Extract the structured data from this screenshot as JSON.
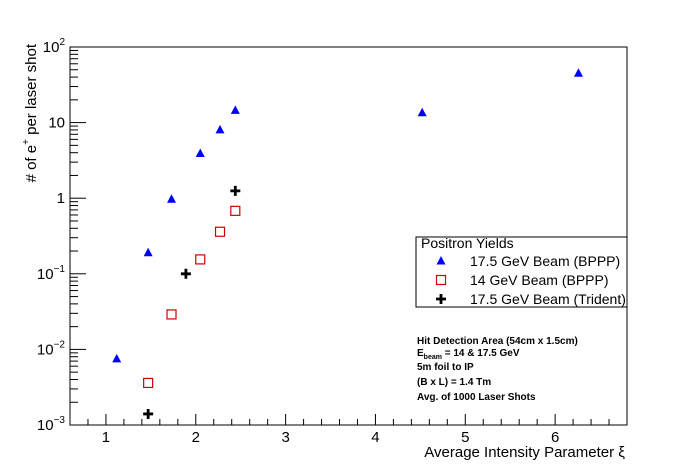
{
  "chart_data": {
    "type": "scatter",
    "title": "",
    "xlabel": "Average Intensity Parameter ξ",
    "ylabel_base": "# of e",
    "ylabel_sup": "+",
    "ylabel_rest": " per laser shot",
    "x_scale": "linear",
    "y_scale": "log",
    "xlim": [
      0.6,
      6.8
    ],
    "ylim": [
      0.001,
      100
    ],
    "x_ticks": [
      1,
      2,
      3,
      4,
      5,
      6
    ],
    "x_tick_labels": [
      "1",
      "2",
      "3",
      "4",
      "5",
      "6"
    ],
    "y_tick_labels": [
      {
        "value": 0.001,
        "base": "10",
        "exp": "−3"
      },
      {
        "value": 0.01,
        "base": "10",
        "exp": "−2"
      },
      {
        "value": 0.1,
        "base": "10",
        "exp": "−1"
      },
      {
        "value": 1,
        "base": "1",
        "exp": ""
      },
      {
        "value": 10,
        "base": "10",
        "exp": ""
      },
      {
        "value": 100,
        "base": "10",
        "exp": "2"
      }
    ],
    "legend_title": "Positron Yields",
    "series": [
      {
        "name": "17.5 GeV Beam (BPPP)",
        "marker": "triangle",
        "color": "#0000ff",
        "x": [
          1.12,
          1.47,
          1.73,
          2.05,
          2.27,
          2.44,
          4.52,
          6.26
        ],
        "y": [
          0.0075,
          0.19,
          0.97,
          3.9,
          8.0,
          14.5,
          13.5,
          45
        ]
      },
      {
        "name": "14 GeV Beam (BPPP)",
        "marker": "open-square",
        "color": "#cc0000",
        "x": [
          1.47,
          1.73,
          2.05,
          2.27,
          2.44
        ],
        "y": [
          0.0036,
          0.029,
          0.155,
          0.36,
          0.68
        ]
      },
      {
        "name": "17.5 GeV Beam (Trident)",
        "marker": "cross",
        "color": "#000000",
        "x": [
          1.47,
          1.89,
          2.44
        ],
        "y": [
          0.0014,
          0.1,
          1.25
        ]
      }
    ],
    "annotations": {
      "line1": "Hit Detection Area (54cm x 1.5cm)",
      "line2_base": "E",
      "line2_sub": "beam",
      "line2_rest": " = 14 & 17.5 GeV",
      "line3": "5m foil to IP",
      "line4": "(B x L) = 1.4 Tm",
      "line5": "Avg. of 1000 Laser Shots"
    }
  }
}
